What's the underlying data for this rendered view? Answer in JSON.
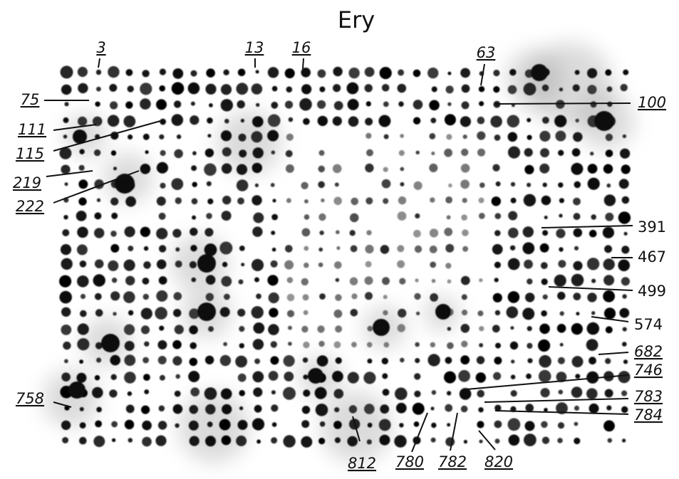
{
  "title": "Ery",
  "labels": [
    {
      "text": "3",
      "underlined": true
    },
    {
      "text": "13",
      "underlined": true
    },
    {
      "text": "16",
      "underlined": true
    },
    {
      "text": "63",
      "underlined": true
    },
    {
      "text": "75",
      "underlined": true
    },
    {
      "text": "100",
      "underlined": true
    },
    {
      "text": "111",
      "underlined": true
    },
    {
      "text": "115",
      "underlined": true
    },
    {
      "text": "219",
      "underlined": true
    },
    {
      "text": "222",
      "underlined": true
    },
    {
      "text": "391",
      "underlined": false
    },
    {
      "text": "467",
      "underlined": false
    },
    {
      "text": "499",
      "underlined": false
    },
    {
      "text": "574",
      "underlined": false
    },
    {
      "text": "682",
      "underlined": true
    },
    {
      "text": "746",
      "underlined": true
    },
    {
      "text": "783",
      "underlined": true
    },
    {
      "text": "784",
      "underlined": true
    },
    {
      "text": "758",
      "underlined": true
    },
    {
      "text": "812",
      "underlined": true
    },
    {
      "text": "780",
      "underlined": true
    },
    {
      "text": "782",
      "underlined": true
    },
    {
      "text": "820",
      "underlined": true
    }
  ]
}
